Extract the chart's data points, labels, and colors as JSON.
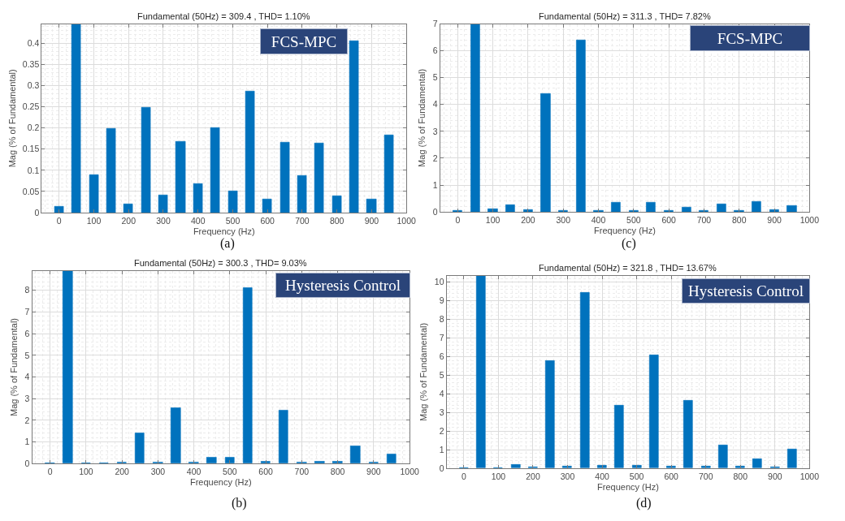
{
  "chart_data": [
    {
      "type": "bar",
      "title": "Fundamental (50Hz) = 309.4 , THD= 1.10%",
      "xlabel": "Frequency (Hz)",
      "ylabel": "Mag (% of Fundamental)",
      "x": [
        0,
        50,
        100,
        150,
        200,
        250,
        300,
        350,
        400,
        450,
        500,
        550,
        600,
        650,
        700,
        750,
        800,
        850,
        900,
        950
      ],
      "values": [
        0.014,
        0.445,
        0.089,
        0.198,
        0.021,
        0.247,
        0.042,
        0.167,
        0.068,
        0.201,
        0.051,
        0.287,
        0.032,
        0.165,
        0.087,
        0.164,
        0.039,
        0.405,
        0.032,
        0.182
      ],
      "color": "#0072bd",
      "xlim": [
        -50,
        1000
      ],
      "xticks": [
        0,
        100,
        200,
        300,
        400,
        500,
        600,
        700,
        800,
        900,
        1000
      ],
      "ylim": [
        0,
        0.445
      ],
      "yticks": [
        0,
        0.05,
        0.1,
        0.15,
        0.2,
        0.25,
        0.3,
        0.35,
        0.4
      ],
      "grid": true,
      "annotations": [
        "FCS-MPC",
        "(a)"
      ]
    },
    {
      "type": "bar",
      "title": "Fundamental (50Hz) = 311.3 , THD= 7.82%",
      "xlabel": "Frequency (Hz)",
      "ylabel": "Mag (% of Fundamental)",
      "x": [
        0,
        50,
        100,
        150,
        200,
        250,
        300,
        350,
        400,
        450,
        500,
        550,
        600,
        650,
        700,
        750,
        800,
        850,
        900,
        950
      ],
      "values": [
        0.04,
        7,
        0.11,
        0.26,
        0.07,
        4.39,
        0.04,
        6.39,
        0.04,
        0.34,
        0.06,
        0.35,
        0.06,
        0.16,
        0.04,
        0.29,
        0.04,
        0.37,
        0.08,
        0.24
      ],
      "color": "#0072bd",
      "xlim": [
        -50,
        1000
      ],
      "xticks": [
        0,
        100,
        200,
        300,
        400,
        500,
        600,
        700,
        800,
        900,
        1000
      ],
      "ylim": [
        0,
        7
      ],
      "yticks": [
        0,
        1,
        2,
        3,
        4,
        5,
        6,
        7
      ],
      "grid": true,
      "annotations": [
        "FCS-MPC",
        "(c)"
      ]
    },
    {
      "type": "bar",
      "title": "Fundamental (50Hz) = 300.3 , THD= 9.03%",
      "xlabel": "Frequency (Hz)",
      "ylabel": "Mag (% of Fundamental)",
      "x": [
        0,
        50,
        100,
        150,
        200,
        250,
        300,
        350,
        400,
        450,
        500,
        550,
        600,
        650,
        700,
        750,
        800,
        850,
        900,
        950
      ],
      "values": [
        0.02,
        8.9,
        0.02,
        0.02,
        0.05,
        1.39,
        0.07,
        2.56,
        0.04,
        0.27,
        0.29,
        8.13,
        0.1,
        2.45,
        0.04,
        0.1,
        0.09,
        0.82,
        0.04,
        0.44
      ],
      "color": "#0072bd",
      "xlim": [
        -50,
        1000
      ],
      "xticks": [
        0,
        100,
        200,
        300,
        400,
        500,
        600,
        700,
        800,
        900,
        1000
      ],
      "ylim": [
        0,
        8.9
      ],
      "yticks": [
        0,
        1,
        2,
        3,
        4,
        5,
        6,
        7,
        8
      ],
      "grid": true,
      "annotations": [
        "Hysteresis Control",
        "(b)"
      ]
    },
    {
      "type": "bar",
      "title": "Fundamental (50Hz) = 321.8 , THD= 13.67%",
      "xlabel": "Frequency (Hz)",
      "ylabel": "Mag (% of Fundamental)",
      "x": [
        0,
        50,
        100,
        150,
        200,
        250,
        300,
        350,
        400,
        450,
        500,
        550,
        600,
        650,
        700,
        750,
        800,
        850,
        900,
        950
      ],
      "values": [
        0.03,
        10.35,
        0.04,
        0.18,
        0.07,
        5.77,
        0.09,
        9.42,
        0.14,
        3.39,
        0.16,
        6.06,
        0.11,
        3.63,
        0.11,
        1.25,
        0.1,
        0.51,
        0.07,
        1.02
      ],
      "color": "#0072bd",
      "xlim": [
        -50,
        1000
      ],
      "xticks": [
        0,
        100,
        200,
        300,
        400,
        500,
        600,
        700,
        800,
        900,
        1000
      ],
      "ylim": [
        0,
        10.35
      ],
      "yticks": [
        0,
        1,
        2,
        3,
        4,
        5,
        6,
        7,
        8,
        9,
        10
      ],
      "grid": true,
      "annotations": [
        "Hysteresis Control",
        "(d)"
      ]
    }
  ]
}
